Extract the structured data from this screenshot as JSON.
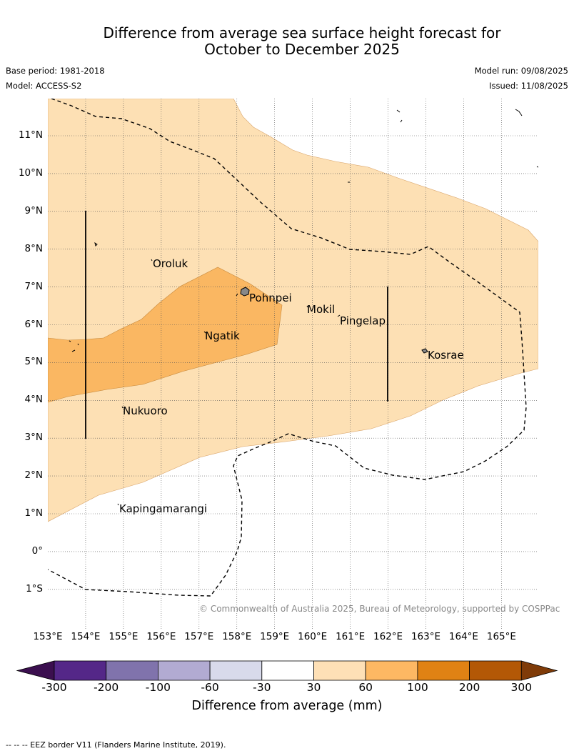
{
  "title": {
    "line1": "Difference from average sea surface height forecast for",
    "line2": "October to December 2025"
  },
  "meta": {
    "base_period": "Base period: 1981-2018",
    "model": "Model: ACCESS-S2",
    "model_run": "Model run: 09/08/2025",
    "issued": "Issued: 11/08/2025"
  },
  "map": {
    "lat_labels": [
      "11°N",
      "10°N",
      "9°N",
      "8°N",
      "7°N",
      "6°N",
      "5°N",
      "4°N",
      "3°N",
      "2°N",
      "1°N",
      "0°",
      "1°S"
    ],
    "lon_labels": [
      "153°E",
      "154°E",
      "155°E",
      "156°E",
      "157°E",
      "158°E",
      "159°E",
      "160°E",
      "161°E",
      "162°E",
      "163°E",
      "164°E",
      "165°E"
    ],
    "places": [
      {
        "name": "Oroluk"
      },
      {
        "name": "Pohnpei"
      },
      {
        "name": "Mokil"
      },
      {
        "name": "Pingelap"
      },
      {
        "name": "Ngatik"
      },
      {
        "name": "Kosrae"
      },
      {
        "name": "Nukuoro"
      },
      {
        "name": "Kapingamarangi"
      }
    ],
    "copyright": "© Commonwealth of Australia 2025, Bureau of Meteorology, supported by COSPPac",
    "colors": {
      "band_30_60": "#fde0b4",
      "band_60_100": "#fab762",
      "coast": "#000000",
      "grid": "#555555"
    }
  },
  "colorbar": {
    "ticks": [
      "-300",
      "-200",
      "-100",
      "-60",
      "-30",
      "30",
      "60",
      "100",
      "200",
      "300"
    ],
    "label": "Difference from average (mm)",
    "colors": [
      "#3b0f4f",
      "#542788",
      "#8073ac",
      "#b2abd2",
      "#d8daeb",
      "#ffffff",
      "#fee0b6",
      "#fdb863",
      "#e08214",
      "#b35806",
      "#7f3b08"
    ]
  },
  "footnote": "-- -- -- EEZ border V11 (Flanders Marine Institute, 2019)."
}
